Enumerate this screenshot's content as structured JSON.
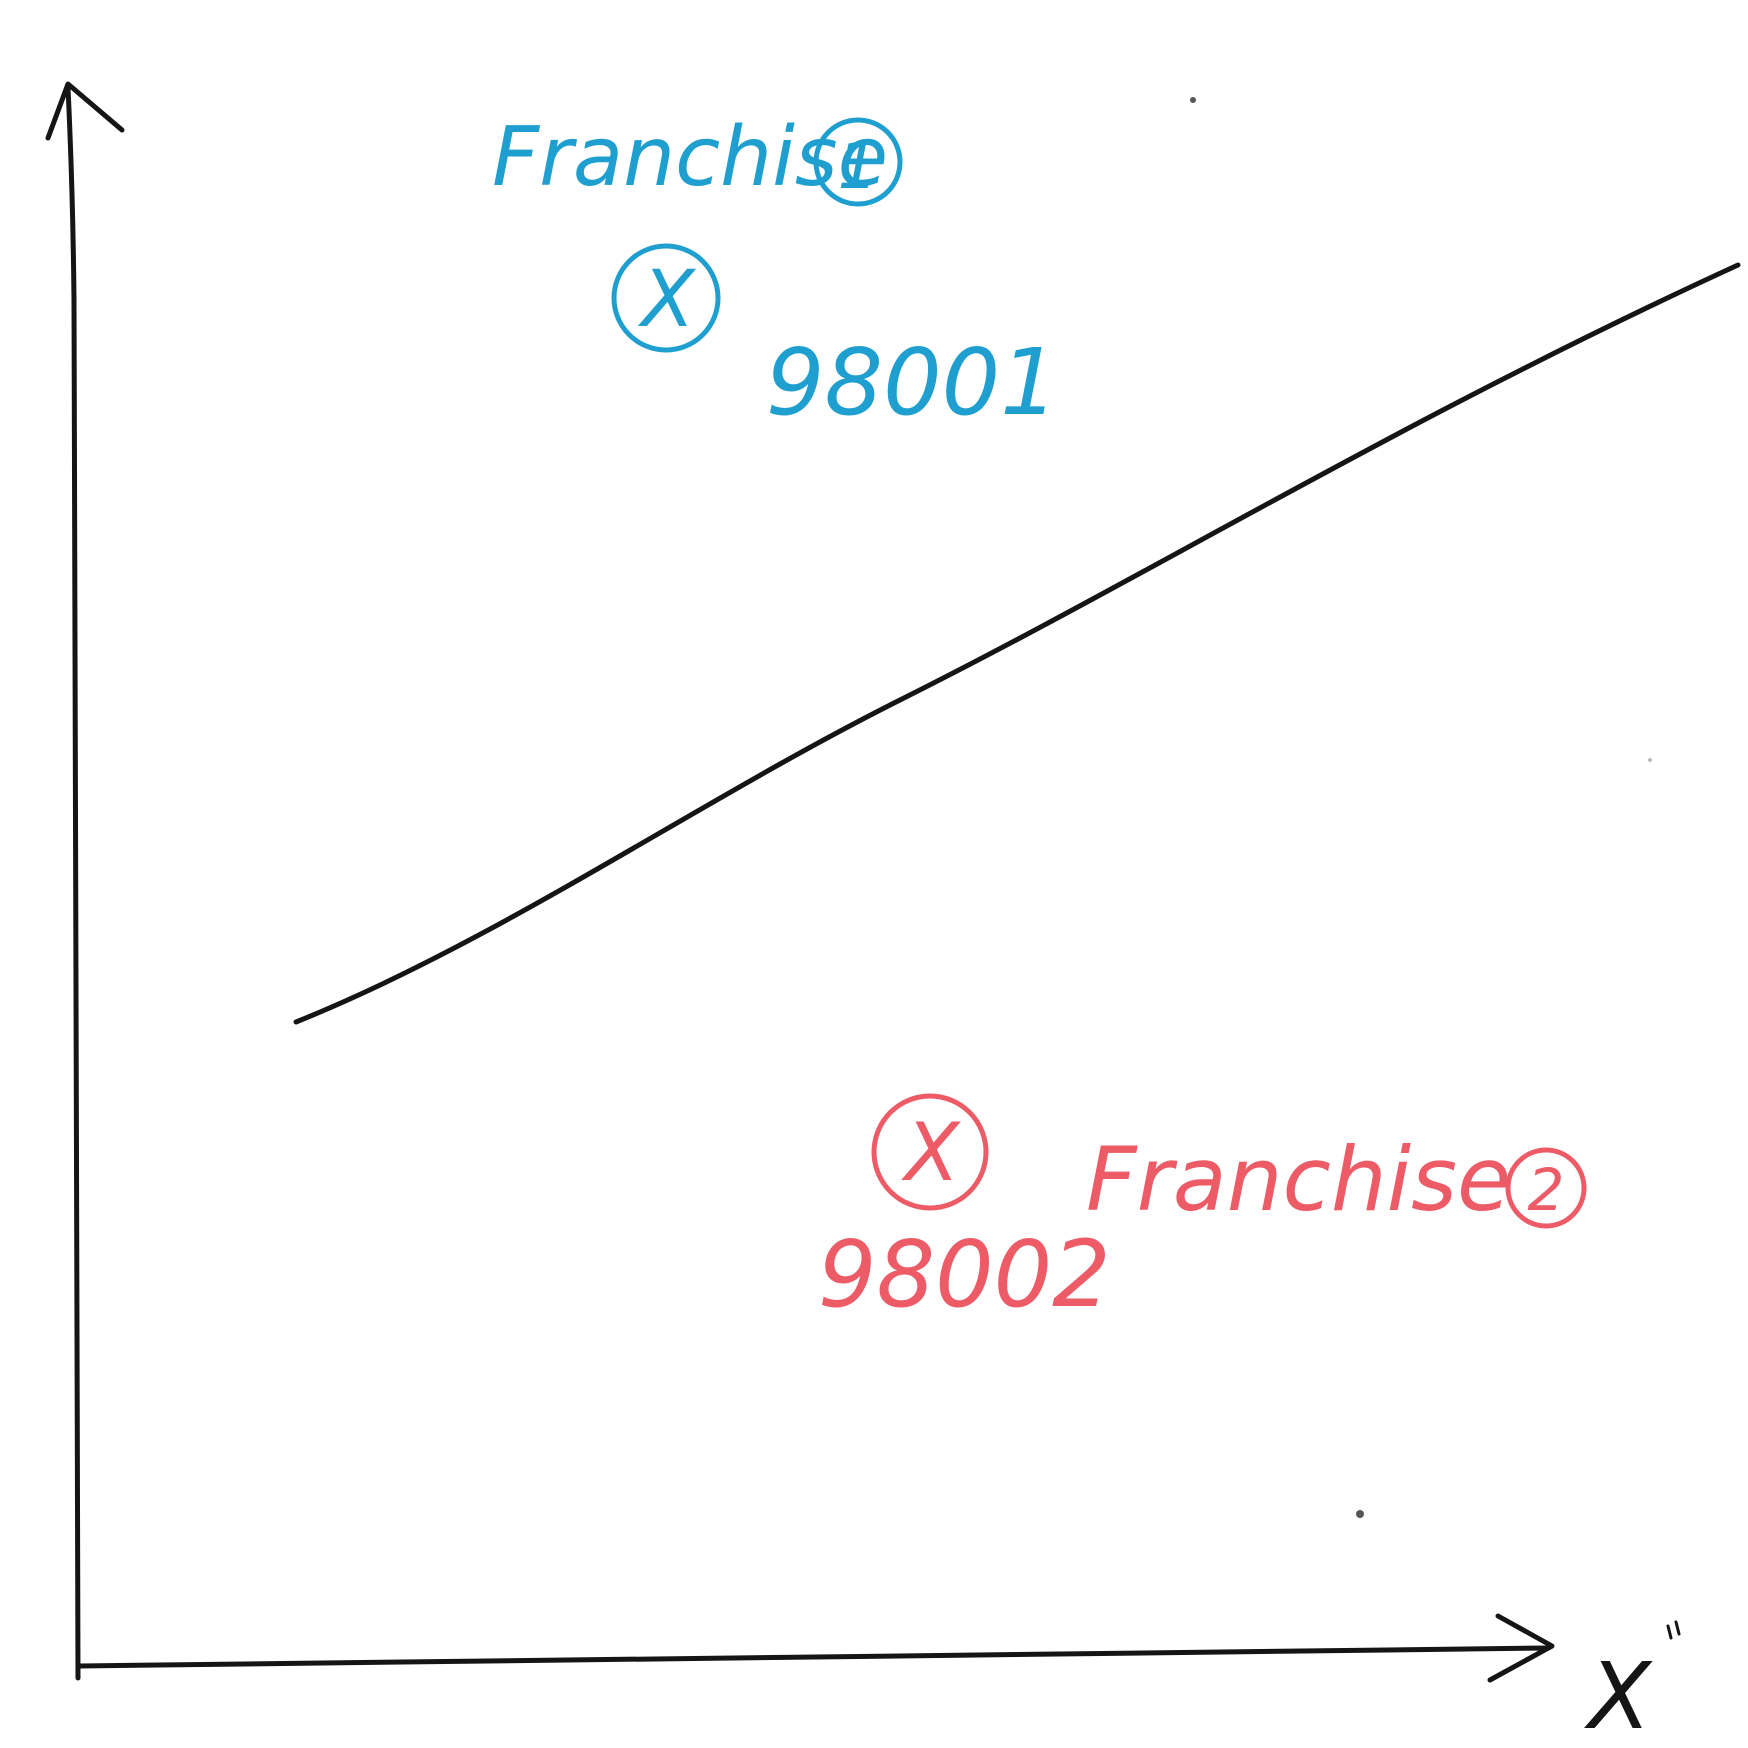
{
  "axes": {
    "x_label": "X"
  },
  "points": [
    {
      "label": "Franchise",
      "number_badge": "1",
      "code": "98001",
      "marker": "X",
      "color": "#1f9fcf",
      "side": "above-line"
    },
    {
      "label": "Franchise",
      "number_badge": "2",
      "code": "98002",
      "marker": "X",
      "color": "#ec5b66",
      "side": "below-line"
    }
  ],
  "colors": {
    "axes_and_line": "#151515",
    "group_1": "#1f9fcf",
    "group_2": "#ec5b66",
    "background": "#ffffff"
  }
}
